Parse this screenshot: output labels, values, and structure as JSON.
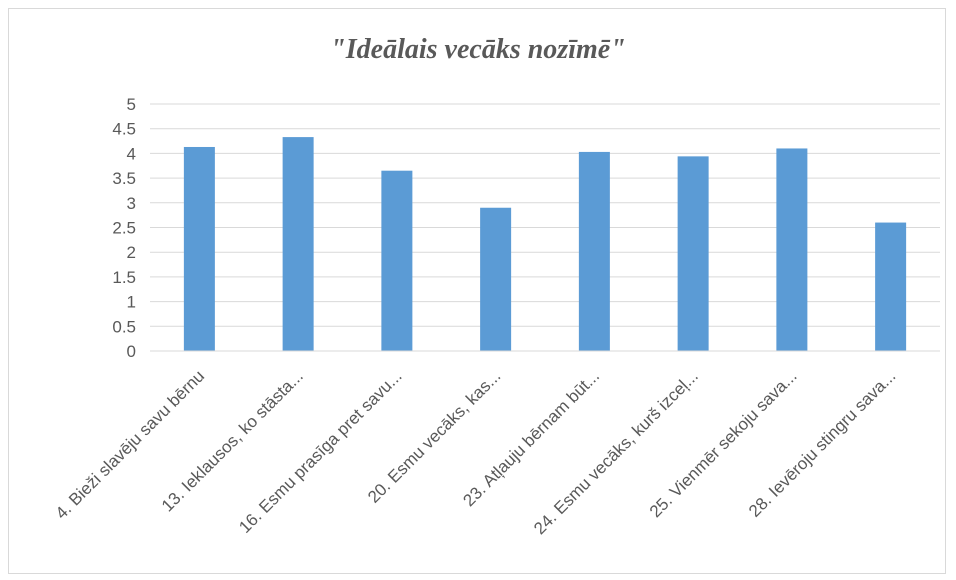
{
  "chart_data": {
    "type": "bar",
    "title": "\"Ideālais vecāks nozīmē\"",
    "xlabel": "",
    "ylabel": "",
    "ylim": [
      0,
      5
    ],
    "yticks": [
      "0",
      "0.5",
      "1",
      "1.5",
      "2",
      "2.5",
      "3",
      "3.5",
      "4",
      "4.5",
      "5"
    ],
    "grid": true,
    "legend": "none",
    "categories": [
      "4. Bieži slavēju savu bērnu",
      "13. Ieklausos, ko stāsta...",
      "16. Esmu prasīga pret savu...",
      "20. Esmu vecāks, kas...",
      "23. Atļauju bērnam būt...",
      "24. Esmu vecāks, kurš izceļ...",
      "25. Vienmēr sekoju sava...",
      "28. Ievēroju stingru sava..."
    ],
    "values": [
      4.13,
      4.33,
      3.65,
      2.9,
      4.03,
      3.94,
      4.1,
      2.6
    ],
    "colors": {
      "bar": "#5b9bd5",
      "grid": "#d9d9d9",
      "text": "#595959"
    }
  }
}
